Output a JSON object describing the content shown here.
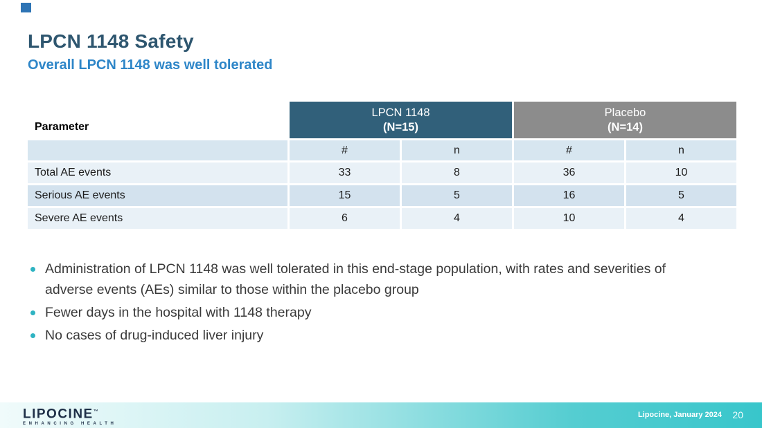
{
  "slide": {
    "title": "LPCN 1148 Safety",
    "subtitle": "Overall LPCN 1148 was well tolerated"
  },
  "table": {
    "parameter_header": "Parameter",
    "groups": [
      {
        "line1": "LPCN 1148",
        "line2": "(N=15)"
      },
      {
        "line1": "Placebo",
        "line2": "(N=14)"
      }
    ],
    "subheaders": [
      "#",
      "n",
      "#",
      "n"
    ],
    "rows": [
      {
        "label": "Total AE events",
        "values": [
          "33",
          "8",
          "36",
          "10"
        ]
      },
      {
        "label": "Serious AE events",
        "values": [
          "15",
          "5",
          "16",
          "5"
        ]
      },
      {
        "label": "Severe AE events",
        "values": [
          "6",
          "4",
          "10",
          "4"
        ]
      }
    ]
  },
  "bullets": [
    "Administration of LPCN 1148 was well tolerated in this end-stage population, with rates and severities of adverse events (AEs) similar to those within the placebo group",
    "Fewer days in the hospital with 1148 therapy",
    "No cases of drug-induced liver injury"
  ],
  "footer": {
    "logo_text": "LIPOCINE",
    "logo_tm": "™",
    "logo_tagline": "ENHANCING HEALTH",
    "citation": "Lipocine, January 2024",
    "page_number": "20"
  },
  "colors": {
    "title": "#2E566F",
    "subtitle": "#2E86C8",
    "lpcn_header_bg": "#31607A",
    "placebo_header_bg": "#8C8C8C",
    "subheader_bg": "#D7E6F0",
    "row_light_bg": "#E9F1F7",
    "row_dark_bg": "#D3E2EE",
    "bullet_dot": "#2EB3C2",
    "footer_teal": "#38C6CB",
    "logo_navy": "#1E2F47",
    "corner_square": "#2E74B5"
  }
}
